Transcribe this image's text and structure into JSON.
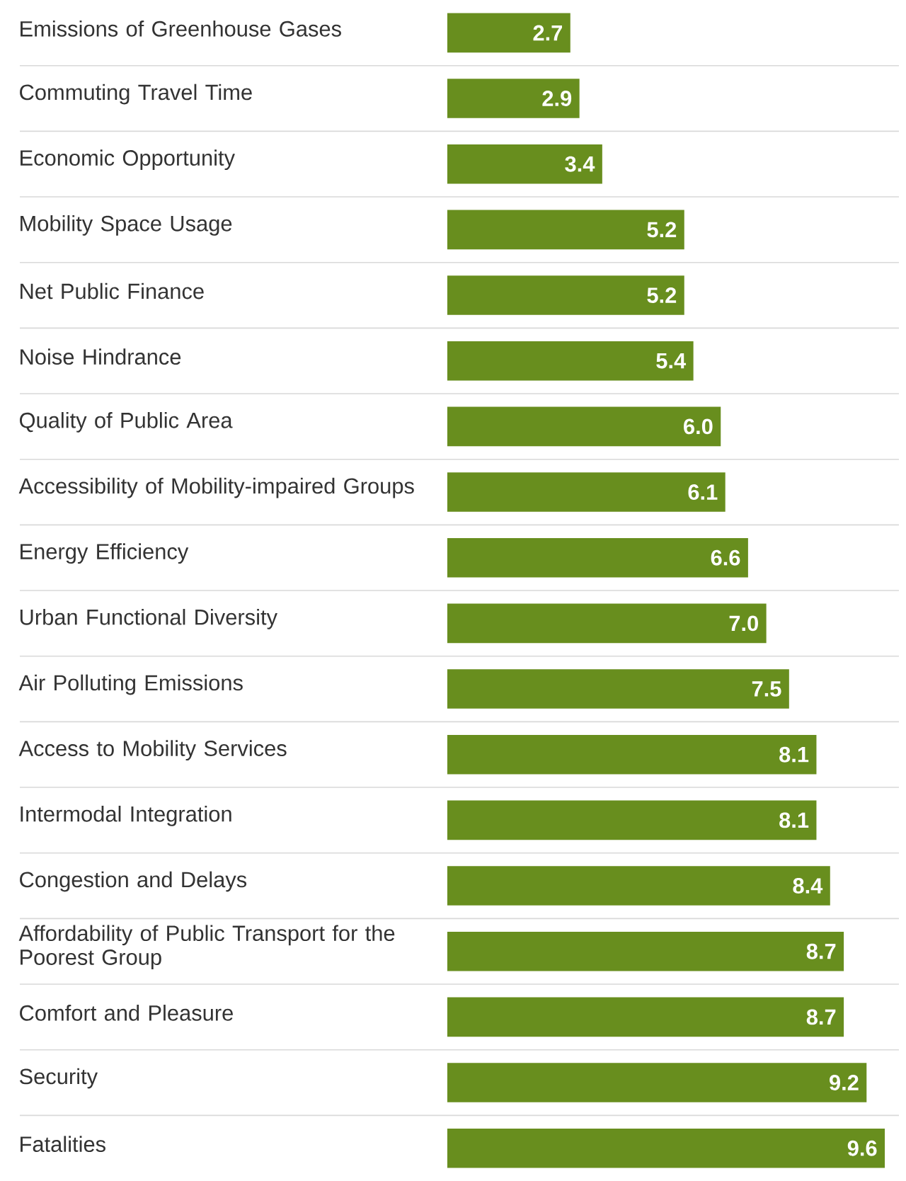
{
  "chart_data": {
    "type": "bar",
    "orientation": "horizontal",
    "categories": [
      "Emissions of Greenhouse Gases",
      "Commuting Travel Time",
      "Economic Opportunity",
      "Mobility Space Usage",
      "Net Public Finance",
      "Noise Hindrance",
      "Quality of Public Area",
      "Accessibility of Mobility-impaired Groups",
      "Energy Efficiency",
      "Urban Functional Diversity",
      "Air Polluting Emissions",
      "Access to Mobility Services",
      "Intermodal Integration",
      "Congestion and Delays",
      "Affordability of Public Transport for the Poorest Group",
      "Comfort and Pleasure",
      "Security",
      "Fatalities"
    ],
    "values": [
      2.7,
      2.9,
      3.4,
      5.2,
      5.2,
      5.4,
      6.0,
      6.1,
      6.6,
      7.0,
      7.5,
      8.1,
      8.1,
      8.4,
      8.7,
      8.7,
      9.2,
      9.6
    ],
    "value_labels": [
      "2.7",
      "2.9",
      "3.4",
      "5.2",
      "5.2",
      "5.4",
      "6.0",
      "6.1",
      "6.6",
      "7.0",
      "7.5",
      "8.1",
      "8.1",
      "8.4",
      "8.7",
      "8.7",
      "9.2",
      "9.6"
    ],
    "color": "#688e1e",
    "grid": "y"
  }
}
